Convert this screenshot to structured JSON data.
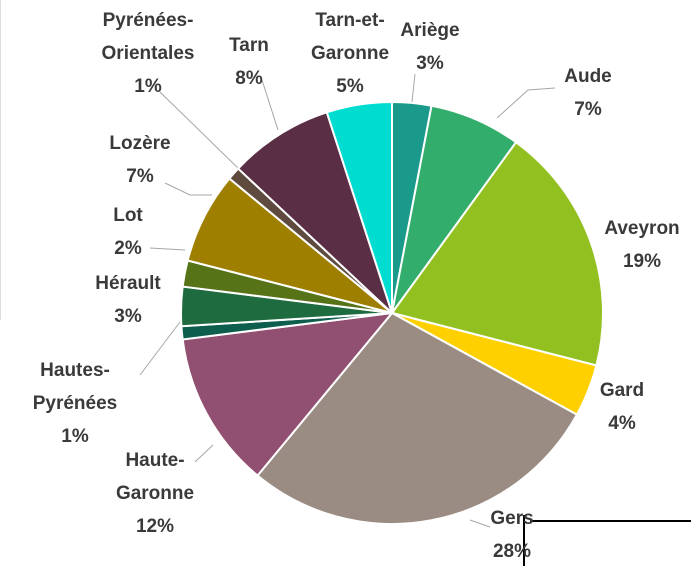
{
  "chart_data": {
    "type": "pie",
    "categories": [
      "Ariège",
      "Aude",
      "Aveyron",
      "Gard",
      "Gers",
      "Haute-Garonne",
      "Hautes-Pyrénées",
      "Hérault",
      "Lot",
      "Lozère",
      "Pyrénées-Orientales",
      "Tarn",
      "Tarn-et-Garonne"
    ],
    "values": [
      3,
      7,
      19,
      4,
      28,
      12,
      1,
      3,
      2,
      7,
      1,
      8,
      5
    ],
    "value_labels": [
      "3%",
      "7%",
      "19%",
      "4%",
      "28%",
      "12%",
      "1%",
      "3%",
      "2%",
      "7%",
      "1%",
      "8%",
      "5%"
    ],
    "colors": [
      "#1a9a8a",
      "#33ad6b",
      "#93c021",
      "#ffd000",
      "#9b8c83",
      "#914f72",
      "#0e5e4e",
      "#1f6b40",
      "#567318",
      "#9e7f00",
      "#5e4a3e",
      "#5a2f45",
      "#00ddd0"
    ]
  }
}
